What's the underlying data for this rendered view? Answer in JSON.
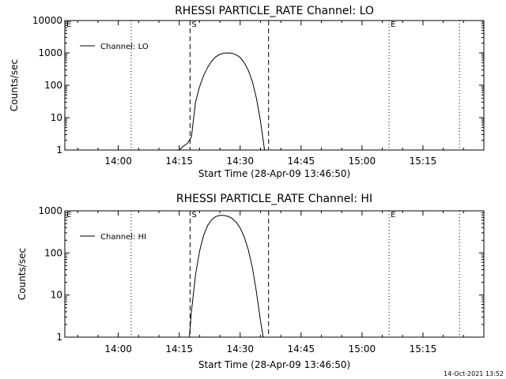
{
  "timestamp": "14-Oct-2021 13:52",
  "chart_data": [
    {
      "type": "line",
      "title": "RHESSI PARTICLE_RATE Channel: LO",
      "xlabel": "Start Time (28-Apr-09 13:46:50)",
      "ylabel": "Counts/sec",
      "yscale": "log",
      "ylim": [
        1,
        10000
      ],
      "yticks": [
        "1",
        "10",
        "100",
        "1000",
        "10000"
      ],
      "xlim": [
        "13:46:50",
        "15:30:00"
      ],
      "xticks": [
        "14:00",
        "14:15",
        "14:30",
        "14:45",
        "15:00",
        "15:15"
      ],
      "legend": "top-left",
      "markers": [
        {
          "label": "S",
          "time": "14:17:40",
          "style": "dashed"
        },
        {
          "label": "",
          "time": "14:37:00",
          "style": "dashed"
        },
        {
          "label": "",
          "time": "14:03:10",
          "style": "dotted"
        },
        {
          "label": "E",
          "time": "15:06:40",
          "style": "dotted"
        },
        {
          "label": "",
          "time": "15:24:00",
          "style": "dotted"
        },
        {
          "label": "E",
          "time": "13:46:50",
          "style": "none"
        }
      ],
      "series": [
        {
          "name": "Channel: LO",
          "points": [
            [
              "14:15:00",
              1.0
            ],
            [
              "14:16:00",
              1.3
            ],
            [
              "14:17:00",
              1.6
            ],
            [
              "14:18:00",
              2.5
            ],
            [
              "14:19:00",
              30
            ],
            [
              "14:20:00",
              90
            ],
            [
              "14:21:00",
              200
            ],
            [
              "14:22:00",
              360
            ],
            [
              "14:23:00",
              560
            ],
            [
              "14:24:00",
              760
            ],
            [
              "14:25:00",
              900
            ],
            [
              "14:26:00",
              980
            ],
            [
              "14:27:00",
              1000
            ],
            [
              "14:28:00",
              970
            ],
            [
              "14:29:00",
              880
            ],
            [
              "14:30:00",
              720
            ],
            [
              "14:31:00",
              500
            ],
            [
              "14:32:00",
              290
            ],
            [
              "14:33:00",
              130
            ],
            [
              "14:34:00",
              40
            ],
            [
              "14:35:00",
              8
            ],
            [
              "14:36:00",
              1.0
            ]
          ]
        }
      ]
    },
    {
      "type": "line",
      "title": "RHESSI PARTICLE_RATE Channel: HI",
      "xlabel": "Start Time (28-Apr-09 13:46:50)",
      "ylabel": "Counts/sec",
      "yscale": "log",
      "ylim": [
        1,
        1000
      ],
      "yticks": [
        "1",
        "10",
        "100",
        "1000"
      ],
      "xlim": [
        "13:46:50",
        "15:30:00"
      ],
      "xticks": [
        "14:00",
        "14:15",
        "14:30",
        "14:45",
        "15:00",
        "15:15"
      ],
      "legend": "top-left",
      "markers": [
        {
          "label": "S",
          "time": "14:17:40",
          "style": "dashed"
        },
        {
          "label": "",
          "time": "14:37:00",
          "style": "dashed"
        },
        {
          "label": "",
          "time": "14:03:10",
          "style": "dotted"
        },
        {
          "label": "E",
          "time": "15:06:40",
          "style": "dotted"
        },
        {
          "label": "",
          "time": "15:24:00",
          "style": "dotted"
        },
        {
          "label": "E",
          "time": "13:46:50",
          "style": "none"
        }
      ],
      "series": [
        {
          "name": "Channel: HI",
          "points": [
            [
              "14:17:30",
              1.0
            ],
            [
              "14:18:00",
              4
            ],
            [
              "14:19:00",
              30
            ],
            [
              "14:20:00",
              110
            ],
            [
              "14:21:00",
              260
            ],
            [
              "14:22:00",
              450
            ],
            [
              "14:23:00",
              620
            ],
            [
              "14:24:00",
              730
            ],
            [
              "14:25:00",
              780
            ],
            [
              "14:26:00",
              780
            ],
            [
              "14:27:00",
              740
            ],
            [
              "14:28:00",
              660
            ],
            [
              "14:29:00",
              540
            ],
            [
              "14:30:00",
              390
            ],
            [
              "14:31:00",
              240
            ],
            [
              "14:32:00",
              120
            ],
            [
              "14:33:00",
              45
            ],
            [
              "14:34:00",
              12
            ],
            [
              "14:35:00",
              2.5
            ],
            [
              "14:35:40",
              1.0
            ]
          ]
        }
      ]
    }
  ]
}
